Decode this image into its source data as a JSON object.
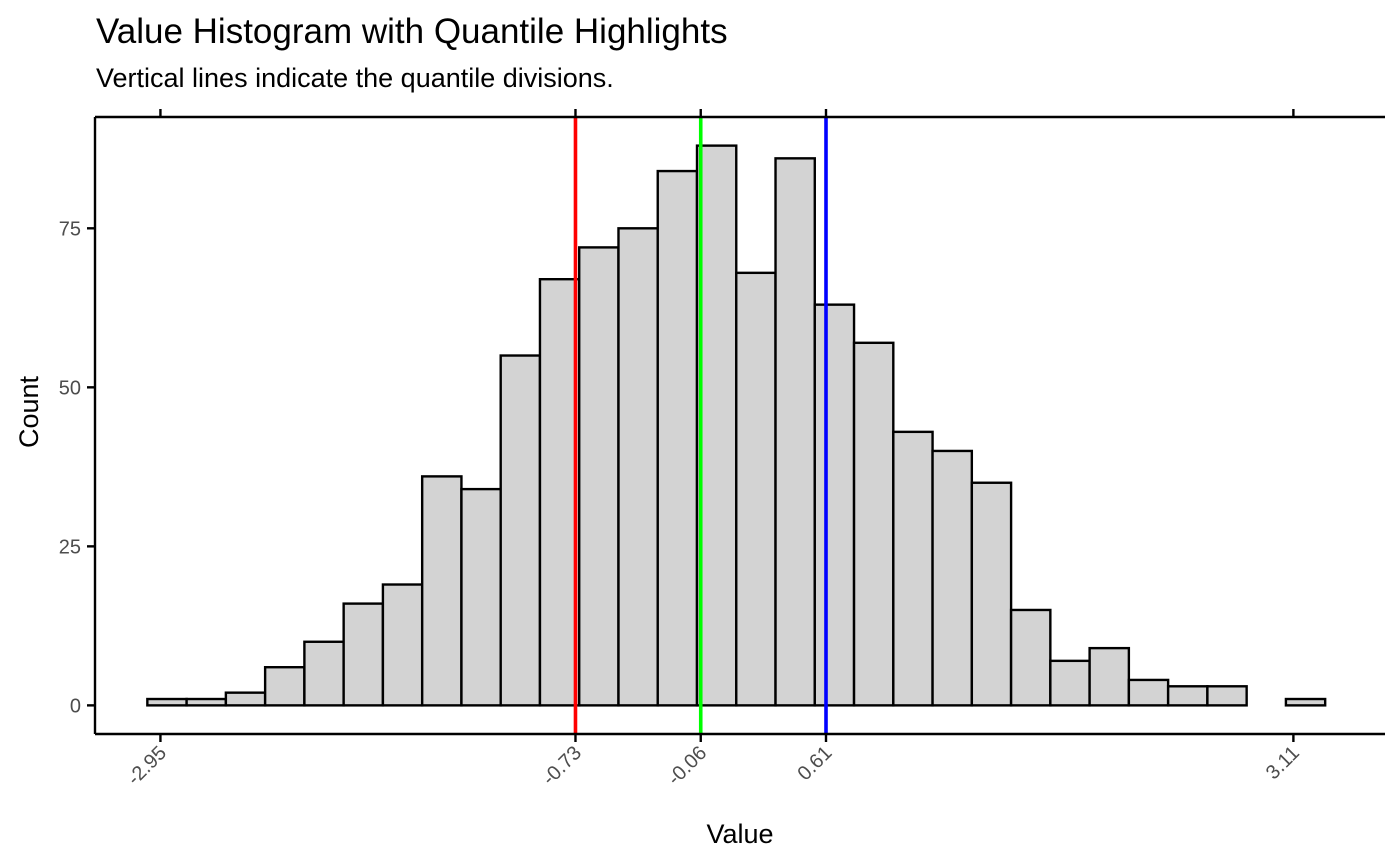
{
  "chart_data": {
    "type": "bar",
    "title": "Value Histogram with Quantile Highlights",
    "subtitle": "Vertical lines indicate the quantile divisions.",
    "xlabel": "Value",
    "ylabel": "Count",
    "xlim": [
      -3.3,
      3.6
    ],
    "ylim": [
      -4.5,
      92.5
    ],
    "bin_edges": [
      -3.02,
      -2.81,
      -2.6,
      -2.39,
      -2.18,
      -1.97,
      -1.76,
      -1.55,
      -1.34,
      -1.13,
      -0.92,
      -0.71,
      -0.5,
      -0.29,
      -0.08,
      0.13,
      0.34,
      0.55,
      0.76,
      0.97,
      1.18,
      1.39,
      1.6,
      1.81,
      2.02,
      2.23,
      2.44,
      2.65,
      2.86,
      3.07,
      3.28
    ],
    "counts": [
      1,
      1,
      2,
      6,
      10,
      16,
      19,
      36,
      34,
      55,
      67,
      72,
      75,
      84,
      88,
      68,
      86,
      63,
      57,
      43,
      40,
      35,
      15,
      7,
      9,
      4,
      3,
      3,
      0,
      1
    ],
    "x_ticks": [
      {
        "value": -2.95,
        "label": "-2.95"
      },
      {
        "value": -0.73,
        "label": "-0.73"
      },
      {
        "value": -0.06,
        "label": "-0.06"
      },
      {
        "value": 0.61,
        "label": "0.61"
      },
      {
        "value": 3.11,
        "label": "3.11"
      }
    ],
    "y_ticks": [
      {
        "value": 0,
        "label": "0"
      },
      {
        "value": 25,
        "label": "25"
      },
      {
        "value": 50,
        "label": "50"
      },
      {
        "value": 75,
        "label": "75"
      }
    ],
    "quantile_lines": [
      {
        "value": -0.73,
        "color": "#ff0000"
      },
      {
        "value": -0.06,
        "color": "#00ff00"
      },
      {
        "value": 0.61,
        "color": "#0000ff"
      }
    ],
    "bar_fill": "#d3d3d3",
    "bar_stroke": "#000000",
    "grid": false,
    "legend": "none"
  }
}
